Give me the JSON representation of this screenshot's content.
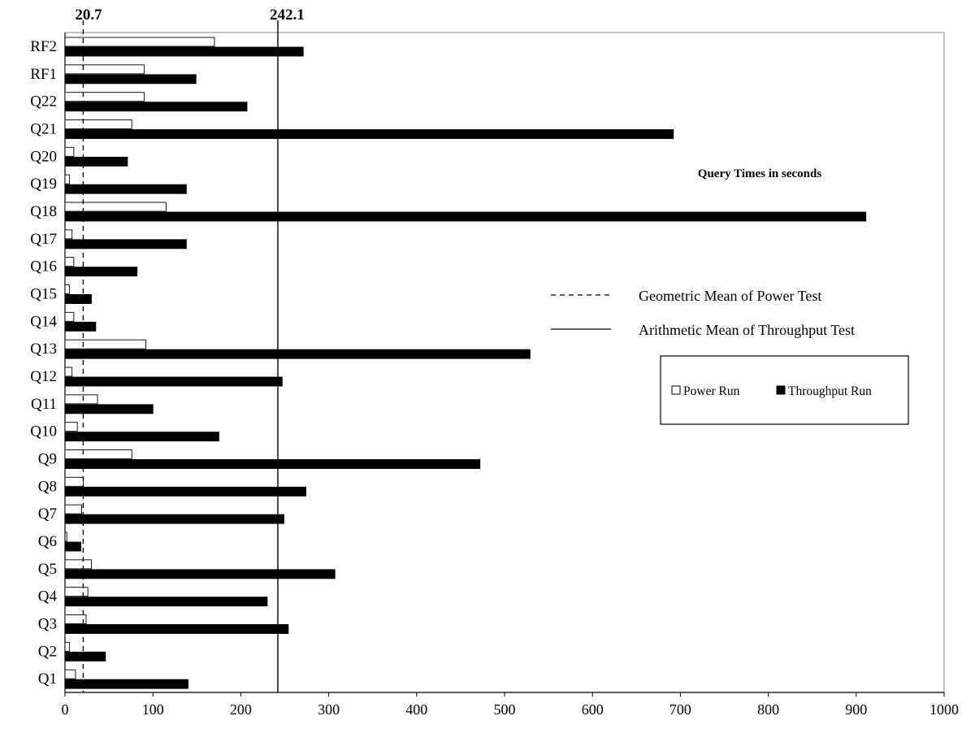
{
  "chart_data": {
    "type": "bar",
    "orientation": "horizontal",
    "categories": [
      "Q1",
      "Q2",
      "Q3",
      "Q4",
      "Q5",
      "Q6",
      "Q7",
      "Q8",
      "Q9",
      "Q10",
      "Q11",
      "Q12",
      "Q13",
      "Q14",
      "Q15",
      "Q16",
      "Q17",
      "Q18",
      "Q19",
      "Q20",
      "Q21",
      "Q22",
      "RF1",
      "RF2"
    ],
    "series": [
      {
        "name": "Power Run",
        "color": "#ffffff",
        "values": [
          12,
          5,
          24,
          26,
          30,
          2,
          19,
          21,
          76,
          14,
          37,
          8,
          92,
          10,
          5,
          10,
          8,
          115,
          5,
          10,
          76,
          90,
          90,
          170
        ]
      },
      {
        "name": "Throughput Run",
        "color": "#000000",
        "values": [
          140,
          46,
          254,
          230,
          307,
          18,
          249,
          274,
          472,
          175,
          100,
          247,
          529,
          35,
          30,
          82,
          138,
          911,
          138,
          71,
          692,
          207,
          149,
          271
        ]
      }
    ],
    "xlim": [
      0,
      1000
    ],
    "xticks": [
      "0",
      "100",
      "200",
      "300",
      "400",
      "500",
      "600",
      "700",
      "800",
      "900",
      "1000"
    ],
    "reference_lines": [
      {
        "name": "Geometric Mean of Power Test",
        "value": 20.7,
        "label": "20.7",
        "style": "dashed"
      },
      {
        "name": "Arithmetic Mean of Throughput Test",
        "value": 242.1,
        "label": "242.1",
        "style": "solid"
      }
    ],
    "annotation": "Query Times in seconds",
    "legend_position": "right"
  }
}
